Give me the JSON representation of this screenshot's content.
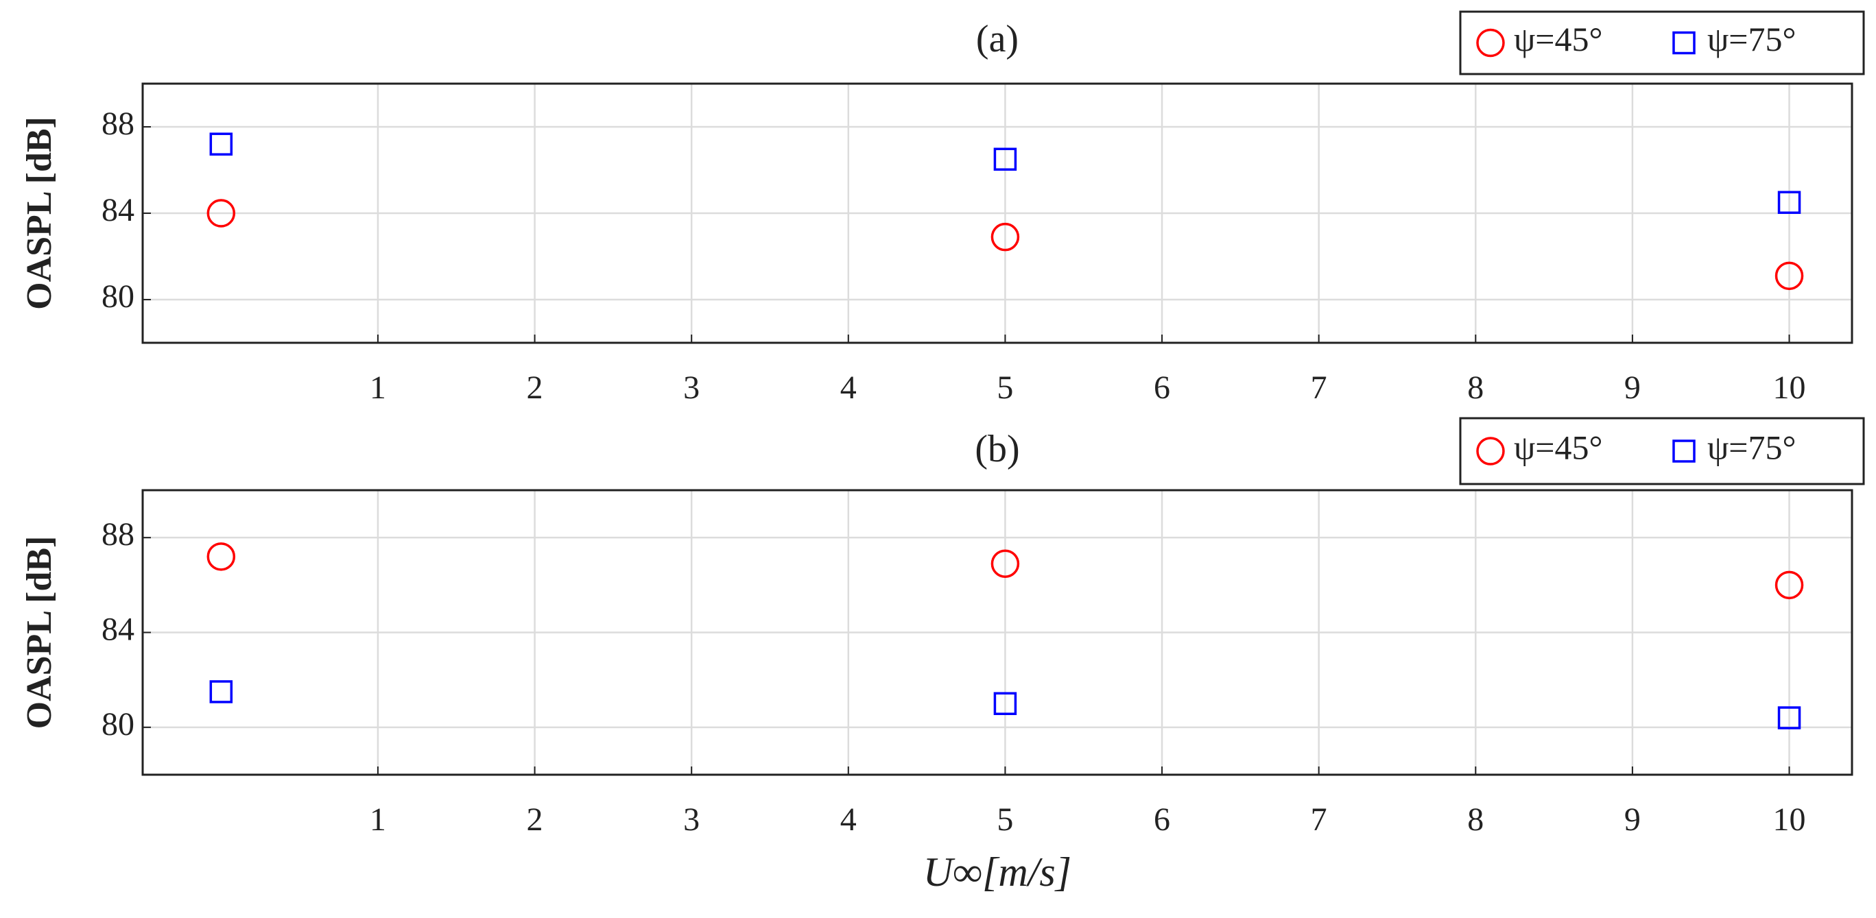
{
  "chart_data": [
    {
      "type": "scatter",
      "title": "(a)",
      "ylabel": "OASPL [dB]",
      "x": [
        0,
        5,
        10
      ],
      "series": [
        {
          "name": "ψ=45°",
          "color": "#ff0000",
          "marker": "circle",
          "values": [
            84.0,
            82.9,
            81.1
          ]
        },
        {
          "name": "ψ=75°",
          "color": "#0000ff",
          "marker": "square",
          "values": [
            87.2,
            86.5,
            84.5
          ]
        }
      ],
      "xlim": [
        -0.5,
        10.4
      ],
      "ylim": [
        78,
        90
      ],
      "xticks": [
        1,
        2,
        3,
        4,
        5,
        6,
        7,
        8,
        9,
        10
      ],
      "yticks": [
        80,
        84,
        88
      ],
      "grid": true,
      "legend": "top-right"
    },
    {
      "type": "scatter",
      "title": "(b)",
      "ylabel": "OASPL [dB]",
      "xlabel": "U∞[m/s]",
      "x": [
        0,
        5,
        10
      ],
      "series": [
        {
          "name": "ψ=45°",
          "color": "#ff0000",
          "marker": "circle",
          "values": [
            87.2,
            86.9,
            86.0
          ]
        },
        {
          "name": "ψ=75°",
          "color": "#0000ff",
          "marker": "square",
          "values": [
            81.5,
            81.0,
            80.4
          ]
        }
      ],
      "xlim": [
        -0.5,
        10.4
      ],
      "ylim": [
        78,
        90
      ],
      "xticks": [
        1,
        2,
        3,
        4,
        5,
        6,
        7,
        8,
        9,
        10
      ],
      "yticks": [
        80,
        84,
        88
      ],
      "grid": true,
      "legend": "top-right"
    }
  ]
}
